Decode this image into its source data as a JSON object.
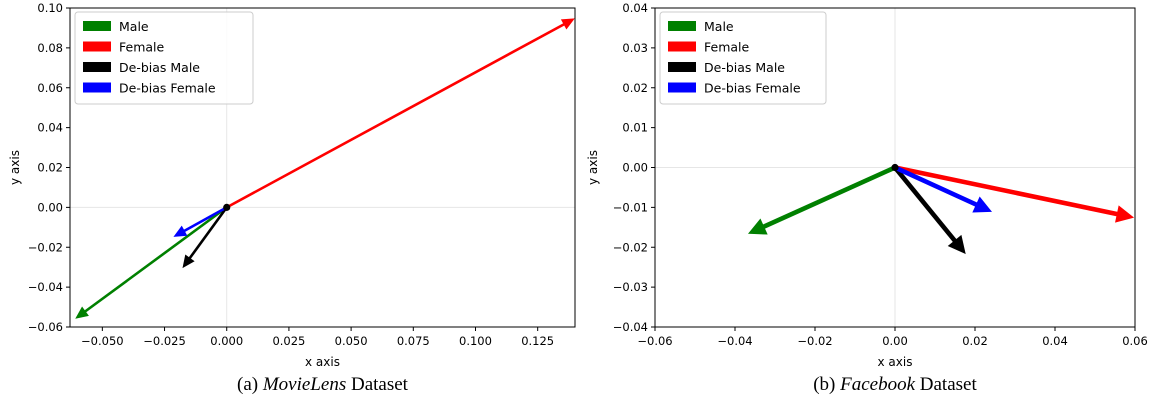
{
  "chart_data": [
    {
      "type": "line",
      "subtype": "vector-arrows",
      "caption": {
        "prefix": "(a) ",
        "emphasis": "MovieLens",
        "suffix": " Dataset"
      },
      "xlabel": "x axis",
      "ylabel": "y axis",
      "xlim": [
        -0.063,
        0.14
      ],
      "ylim": [
        -0.06,
        0.1
      ],
      "xticks": [
        -0.05,
        -0.025,
        0.0,
        0.025,
        0.05,
        0.075,
        0.1,
        0.125
      ],
      "xtick_labels": [
        "−0.050",
        "−0.025",
        "0.000",
        "0.025",
        "0.050",
        "0.075",
        "0.100",
        "0.125"
      ],
      "yticks": [
        -0.06,
        -0.04,
        -0.02,
        0.0,
        0.02,
        0.04,
        0.06,
        0.08,
        0.1
      ],
      "ytick_labels": [
        "−0.06",
        "−0.04",
        "−0.02",
        "0.00",
        "0.02",
        "0.04",
        "0.06",
        "0.08",
        "0.10"
      ],
      "origin_lines": true,
      "legend_position": "top-left",
      "series": [
        {
          "name": "Male",
          "color": "#008000",
          "x": [
            0,
            -0.0605
          ],
          "y": [
            0,
            -0.0555
          ],
          "width": "thin"
        },
        {
          "name": "Female",
          "color": "#ff0000",
          "x": [
            0,
            0.1395
          ],
          "y": [
            0,
            0.0945
          ],
          "width": "thin"
        },
        {
          "name": "De-bias Male",
          "color": "#000000",
          "x": [
            0,
            -0.0175
          ],
          "y": [
            0,
            -0.03
          ],
          "width": "thin"
        },
        {
          "name": "De-bias Female",
          "color": "#0000ff",
          "x": [
            0,
            -0.021
          ],
          "y": [
            0,
            -0.0145
          ],
          "width": "thin"
        }
      ]
    },
    {
      "type": "line",
      "subtype": "vector-arrows",
      "caption": {
        "prefix": "(b) ",
        "emphasis": "Facebook",
        "suffix": " Dataset"
      },
      "xlabel": "x axis",
      "ylabel": "y axis",
      "xlim": [
        -0.06,
        0.06
      ],
      "ylim": [
        -0.04,
        0.04
      ],
      "xticks": [
        -0.06,
        -0.04,
        -0.02,
        0.0,
        0.02,
        0.04,
        0.06
      ],
      "xtick_labels": [
        "−0.06",
        "−0.04",
        "−0.02",
        "0.00",
        "0.02",
        "0.04",
        "0.06"
      ],
      "yticks": [
        -0.04,
        -0.03,
        -0.02,
        -0.01,
        0.0,
        0.01,
        0.02,
        0.03,
        0.04
      ],
      "ytick_labels": [
        "−0.04",
        "−0.03",
        "−0.02",
        "−0.01",
        "0.00",
        "0.01",
        "0.02",
        "0.03",
        "0.04"
      ],
      "origin_lines": true,
      "legend_position": "top-left",
      "series": [
        {
          "name": "Male",
          "color": "#008000",
          "x": [
            0,
            -0.0365
          ],
          "y": [
            0,
            -0.0165
          ],
          "width": "thick"
        },
        {
          "name": "Female",
          "color": "#ff0000",
          "x": [
            0,
            0.0595
          ],
          "y": [
            0,
            -0.0125
          ],
          "width": "thick"
        },
        {
          "name": "De-bias Male",
          "color": "#000000",
          "x": [
            0,
            0.0175
          ],
          "y": [
            0,
            -0.0215
          ],
          "width": "thick"
        },
        {
          "name": "De-bias Female",
          "color": "#0000ff",
          "x": [
            0,
            0.024
          ],
          "y": [
            0,
            -0.011
          ],
          "width": "thick"
        }
      ]
    }
  ]
}
